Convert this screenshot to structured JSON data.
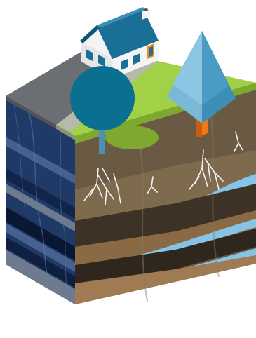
{
  "diagram": {
    "labels": [],
    "colors": {
      "background": "#ffffff",
      "road": "#6b6e73",
      "road_light": "#8a8c90",
      "sidewalk": "#b7b9a9",
      "grass": "#93c43b",
      "grass_light": "#a9d44a",
      "grass_shadow": "#7ea82f",
      "soil_top": "#6a5a44",
      "soil_brown": "#8a6a45",
      "soil_dark": "#3d3226",
      "soil_tan": "#a07a52",
      "aquifer": "#86c4e6",
      "rock_blue": "#1f3a66",
      "rock_navy": "#0e1f40",
      "rock_light": "#46618f",
      "rock_gray": "#6e7a8e",
      "tree_round": "#0b6f8f",
      "tree_cone": "#7ab8d8",
      "tree_cone_dark": "#3d8fb8",
      "trunk": "#4c8fb8",
      "trunk_orange": "#f07a1a",
      "house_wall": "#f4f4f4",
      "house_roof": "#1a6f96",
      "house_roof_light": "#3a8fb8",
      "door": "#f28b1e",
      "roots": "#f4f4f4"
    },
    "elements": {
      "house": "house",
      "round_tree": "deciduous-tree",
      "cone_tree": "conifer-tree",
      "left_face": "rock-strata-face",
      "front_face": "soil-strata-face",
      "top_face": "ground-surface"
    }
  }
}
